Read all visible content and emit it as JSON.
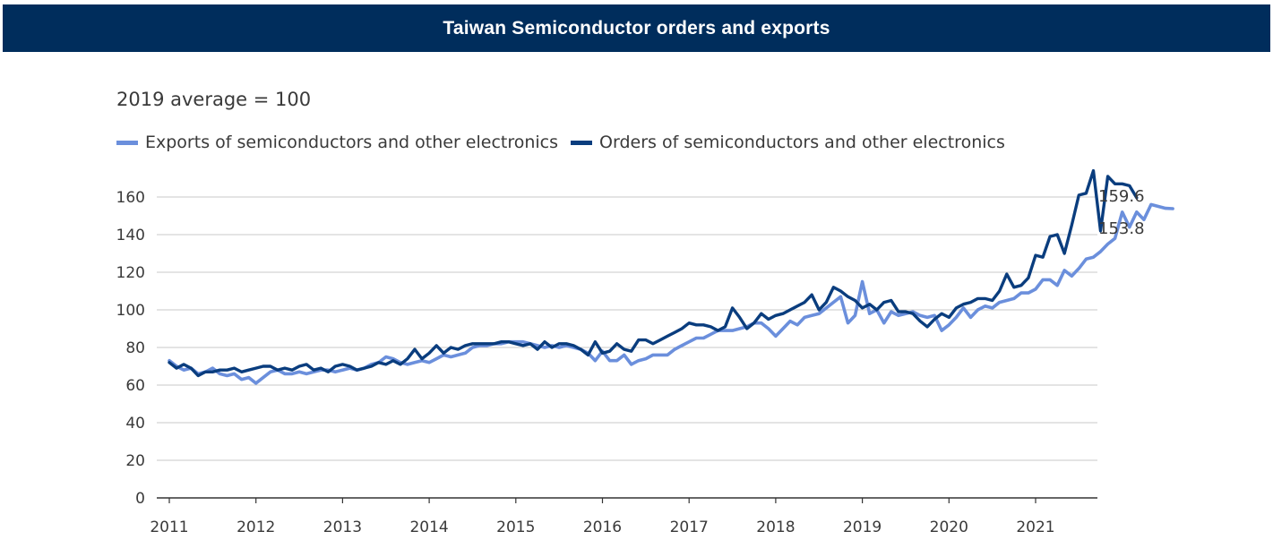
{
  "header": {
    "title": "Taiwan Semiconductor orders and exports"
  },
  "chart_data": {
    "type": "line",
    "title": "Taiwan Semiconductor orders and exports",
    "subtitle": "2019 average = 100",
    "xlabel": "",
    "ylabel": "",
    "x_start": "2011-01",
    "x_step": "monthly",
    "xlim": [
      "2011-01",
      "2021-12"
    ],
    "ylim": [
      0,
      170
    ],
    "y_ticks": [
      "0",
      "20",
      "40",
      "60",
      "80",
      "100",
      "120",
      "140",
      "160"
    ],
    "x_ticks": [
      "2011",
      "2012",
      "2013",
      "2014",
      "2015",
      "2016",
      "2017",
      "2018",
      "2019",
      "2020",
      "2021"
    ],
    "grid": true,
    "legend_position": "top-left",
    "series": [
      {
        "name": "Exports of semiconductors and other electronics",
        "color": "#6b8fdc",
        "end_label": "153.8",
        "values": [
          73,
          70,
          68,
          69,
          66,
          67,
          69,
          66,
          65,
          66,
          63,
          64,
          61,
          64,
          67,
          68,
          66,
          66,
          67,
          66,
          67,
          68,
          68,
          67,
          68,
          69,
          68,
          69,
          71,
          72,
          75,
          74,
          72,
          71,
          72,
          73,
          72,
          74,
          76,
          75,
          76,
          77,
          80,
          81,
          81,
          82,
          82,
          83,
          83,
          83,
          82,
          81,
          80,
          81,
          80,
          81,
          80,
          79,
          77,
          73,
          78,
          73,
          73,
          76,
          71,
          73,
          74,
          76,
          76,
          76,
          79,
          81,
          83,
          85,
          85,
          87,
          89,
          89,
          89,
          90,
          91,
          93,
          93,
          90,
          86,
          90,
          94,
          92,
          96,
          97,
          98,
          101,
          104,
          107,
          93,
          97,
          115,
          98,
          100,
          93,
          99,
          97,
          98,
          99,
          97,
          96,
          97,
          89,
          92,
          96,
          101,
          96,
          100,
          102,
          101,
          104,
          105,
          106,
          109,
          109,
          111,
          116,
          116,
          113,
          121,
          118,
          122,
          127,
          128,
          131,
          135,
          138,
          152,
          144,
          152,
          148,
          156,
          155,
          154,
          153.8
        ]
      },
      {
        "name": "Orders of semiconductors and other electronics",
        "color": "#0a3d7e",
        "end_label": "159.6",
        "values": [
          72,
          69,
          71,
          69,
          65,
          67,
          67,
          68,
          68,
          69,
          67,
          68,
          69,
          70,
          70,
          68,
          69,
          68,
          70,
          71,
          68,
          69,
          67,
          70,
          71,
          70,
          68,
          69,
          70,
          72,
          71,
          73,
          71,
          74,
          79,
          74,
          77,
          81,
          77,
          80,
          79,
          81,
          82,
          82,
          82,
          82,
          83,
          83,
          82,
          81,
          82,
          79,
          83,
          80,
          82,
          82,
          81,
          79,
          76,
          83,
          77,
          78,
          82,
          79,
          78,
          84,
          84,
          82,
          84,
          86,
          88,
          90,
          93,
          92,
          92,
          91,
          89,
          91,
          101,
          96,
          90,
          93,
          98,
          95,
          97,
          98,
          100,
          102,
          104,
          108,
          100,
          104,
          112,
          110,
          107,
          105,
          101,
          103,
          100,
          104,
          105,
          99,
          99,
          98,
          94,
          91,
          95,
          98,
          96,
          101,
          103,
          104,
          106,
          106,
          105,
          110,
          119,
          112,
          113,
          117,
          129,
          128,
          139,
          140,
          130,
          145,
          161,
          162,
          174,
          142,
          171,
          167,
          167,
          166,
          159.6
        ]
      }
    ]
  }
}
